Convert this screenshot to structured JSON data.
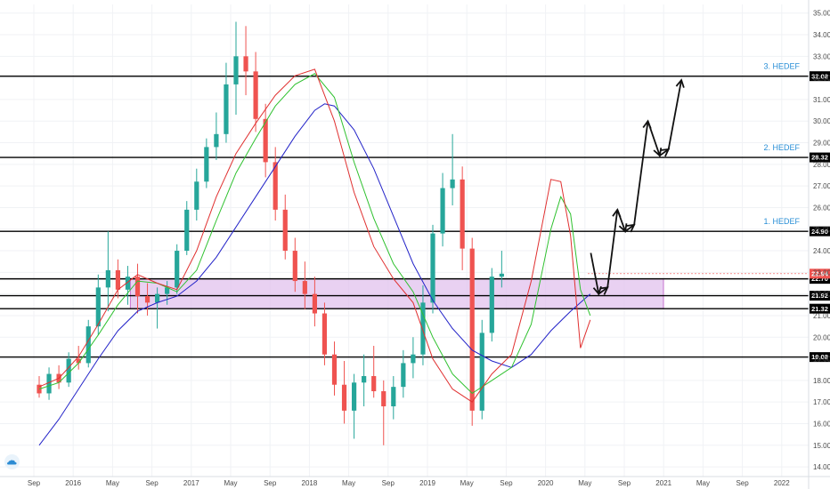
{
  "chart_data": {
    "type": "candlestick",
    "symbol_logo": "tradingview-logo",
    "y_axis": {
      "min": 14.0,
      "max": 35.0,
      "ticks": [
        "35.00",
        "34.00",
        "33.00",
        "32.00",
        "31.00",
        "30.00",
        "29.00",
        "28.00",
        "27.00",
        "26.00",
        "25.00",
        "24.00",
        "23.00",
        "22.00",
        "21.00",
        "20.00",
        "19.00",
        "18.00",
        "17.00",
        "16.00",
        "15.00",
        "14.00"
      ]
    },
    "x_axis": {
      "ticks": [
        {
          "label": "Sep",
          "t": 0.0
        },
        {
          "label": "2016",
          "t": 4.0
        },
        {
          "label": "May",
          "t": 8.0
        },
        {
          "label": "Sep",
          "t": 12.0
        },
        {
          "label": "2017",
          "t": 16.0
        },
        {
          "label": "May",
          "t": 20.0
        },
        {
          "label": "Sep",
          "t": 24.0
        },
        {
          "label": "2018",
          "t": 28.0
        },
        {
          "label": "May",
          "t": 32.0
        },
        {
          "label": "Sep",
          "t": 36.0
        },
        {
          "label": "2019",
          "t": 40.0
        },
        {
          "label": "May",
          "t": 44.0
        },
        {
          "label": "Sep",
          "t": 48.0
        },
        {
          "label": "2020",
          "t": 52.0
        },
        {
          "label": "May",
          "t": 56.0
        },
        {
          "label": "Sep",
          "t": 60.0
        },
        {
          "label": "2021",
          "t": 64.0
        },
        {
          "label": "May",
          "t": 68.0
        },
        {
          "label": "Sep",
          "t": 72.0
        },
        {
          "label": "2022",
          "t": 76.0
        }
      ]
    },
    "horizontal_levels": [
      {
        "value": 32.08,
        "label": "32.08",
        "target": "3. HEDEF"
      },
      {
        "value": 28.32,
        "label": "28.32",
        "target": "2. HEDEF"
      },
      {
        "value": 24.9,
        "label": "24.90",
        "target": "1. HEDEF"
      },
      {
        "value": 22.7,
        "label": "22.70",
        "target": ""
      },
      {
        "value": 21.92,
        "label": "21.92",
        "target": ""
      },
      {
        "value": 21.32,
        "label": "21.32",
        "target": ""
      },
      {
        "value": 19.08,
        "label": "19.08",
        "target": ""
      }
    ],
    "last_price": {
      "value": 22.94,
      "label": "22.94"
    },
    "zone": {
      "from_value": 21.32,
      "to_value": 22.7,
      "t_start": 6.0,
      "t_end": 60.0
    },
    "projection_path": [
      {
        "t": 56.6,
        "v": 23.9
      },
      {
        "t": 57.4,
        "v": 22.0
      },
      {
        "t": 58.3,
        "v": 22.3
      },
      {
        "t": 59.3,
        "v": 25.9
      },
      {
        "t": 60.1,
        "v": 24.9
      },
      {
        "t": 61.0,
        "v": 25.2
      },
      {
        "t": 62.4,
        "v": 30.0
      },
      {
        "t": 63.6,
        "v": 28.4
      },
      {
        "t": 64.5,
        "v": 28.7
      },
      {
        "t": 65.8,
        "v": 31.9
      }
    ],
    "ma_fast": [
      {
        "t": 0,
        "v": 17.7
      },
      {
        "t": 2,
        "v": 18.1
      },
      {
        "t": 4,
        "v": 19.1
      },
      {
        "t": 6,
        "v": 20.6
      },
      {
        "t": 8,
        "v": 22.2
      },
      {
        "t": 10,
        "v": 22.9
      },
      {
        "t": 12,
        "v": 22.5
      },
      {
        "t": 14,
        "v": 22.2
      },
      {
        "t": 16,
        "v": 24.0
      },
      {
        "t": 18,
        "v": 26.5
      },
      {
        "t": 20,
        "v": 28.5
      },
      {
        "t": 22,
        "v": 29.9
      },
      {
        "t": 24,
        "v": 31.2
      },
      {
        "t": 26,
        "v": 32.1
      },
      {
        "t": 28,
        "v": 32.4
      },
      {
        "t": 30,
        "v": 30.0
      },
      {
        "t": 32,
        "v": 26.7
      },
      {
        "t": 34,
        "v": 24.2
      },
      {
        "t": 36,
        "v": 22.7
      },
      {
        "t": 38,
        "v": 21.6
      },
      {
        "t": 40,
        "v": 19.0
      },
      {
        "t": 42,
        "v": 17.6
      },
      {
        "t": 44,
        "v": 17.0
      },
      {
        "t": 46,
        "v": 18.3
      },
      {
        "t": 48,
        "v": 19.2
      },
      {
        "t": 50,
        "v": 22.6
      },
      {
        "t": 52,
        "v": 27.3
      },
      {
        "t": 53,
        "v": 27.2
      },
      {
        "t": 54,
        "v": 24.7
      },
      {
        "t": 55,
        "v": 19.5
      },
      {
        "t": 56,
        "v": 20.8
      }
    ],
    "ma_mid": [
      {
        "t": 0,
        "v": 17.6
      },
      {
        "t": 2,
        "v": 17.9
      },
      {
        "t": 4,
        "v": 18.8
      },
      {
        "t": 6,
        "v": 20.1
      },
      {
        "t": 8,
        "v": 21.5
      },
      {
        "t": 10,
        "v": 22.6
      },
      {
        "t": 12,
        "v": 22.5
      },
      {
        "t": 14,
        "v": 22.1
      },
      {
        "t": 16,
        "v": 23.1
      },
      {
        "t": 18,
        "v": 25.4
      },
      {
        "t": 20,
        "v": 27.6
      },
      {
        "t": 22,
        "v": 29.2
      },
      {
        "t": 24,
        "v": 30.7
      },
      {
        "t": 26,
        "v": 31.7
      },
      {
        "t": 28,
        "v": 32.2
      },
      {
        "t": 30,
        "v": 31.1
      },
      {
        "t": 32,
        "v": 28.1
      },
      {
        "t": 34,
        "v": 25.5
      },
      {
        "t": 36,
        "v": 23.4
      },
      {
        "t": 38,
        "v": 22.1
      },
      {
        "t": 40,
        "v": 20.0
      },
      {
        "t": 42,
        "v": 18.3
      },
      {
        "t": 44,
        "v": 17.4
      },
      {
        "t": 46,
        "v": 18.0
      },
      {
        "t": 48,
        "v": 18.6
      },
      {
        "t": 50,
        "v": 20.6
      },
      {
        "t": 52,
        "v": 25.0
      },
      {
        "t": 53,
        "v": 26.5
      },
      {
        "t": 54,
        "v": 25.7
      },
      {
        "t": 55,
        "v": 22.2
      },
      {
        "t": 56,
        "v": 21.0
      }
    ],
    "ma_slow": [
      {
        "t": 0,
        "v": 15.0
      },
      {
        "t": 2,
        "v": 16.2
      },
      {
        "t": 4,
        "v": 17.6
      },
      {
        "t": 6,
        "v": 19.0
      },
      {
        "t": 8,
        "v": 20.3
      },
      {
        "t": 10,
        "v": 21.2
      },
      {
        "t": 12,
        "v": 21.6
      },
      {
        "t": 14,
        "v": 21.9
      },
      {
        "t": 16,
        "v": 22.6
      },
      {
        "t": 18,
        "v": 23.7
      },
      {
        "t": 20,
        "v": 25.1
      },
      {
        "t": 22,
        "v": 26.5
      },
      {
        "t": 24,
        "v": 27.9
      },
      {
        "t": 26,
        "v": 29.3
      },
      {
        "t": 28,
        "v": 30.5
      },
      {
        "t": 29,
        "v": 30.8
      },
      {
        "t": 30,
        "v": 30.7
      },
      {
        "t": 32,
        "v": 29.6
      },
      {
        "t": 34,
        "v": 27.8
      },
      {
        "t": 36,
        "v": 25.6
      },
      {
        "t": 38,
        "v": 23.4
      },
      {
        "t": 40,
        "v": 21.7
      },
      {
        "t": 42,
        "v": 20.4
      },
      {
        "t": 44,
        "v": 19.4
      },
      {
        "t": 46,
        "v": 18.9
      },
      {
        "t": 48,
        "v": 18.6
      },
      {
        "t": 50,
        "v": 19.2
      },
      {
        "t": 52,
        "v": 20.3
      },
      {
        "t": 54,
        "v": 21.2
      },
      {
        "t": 56,
        "v": 22.0
      }
    ],
    "candles": [
      [
        0,
        17.8,
        18.2,
        17.2,
        17.4
      ],
      [
        1,
        17.4,
        18.6,
        17.1,
        18.3
      ],
      [
        2,
        18.3,
        18.7,
        17.6,
        17.9
      ],
      [
        3,
        17.9,
        19.3,
        17.7,
        19.0
      ],
      [
        4,
        19.0,
        19.6,
        18.5,
        18.8
      ],
      [
        5,
        18.8,
        20.8,
        18.6,
        20.5
      ],
      [
        6,
        20.5,
        22.9,
        20.1,
        22.3
      ],
      [
        7,
        22.3,
        24.9,
        21.2,
        23.1
      ],
      [
        8,
        23.1,
        23.6,
        21.8,
        22.2
      ],
      [
        9,
        22.2,
        23.3,
        21.5,
        22.8
      ],
      [
        10,
        22.8,
        23.4,
        21.1,
        21.9
      ],
      [
        11,
        21.9,
        22.5,
        21.0,
        21.6
      ],
      [
        12,
        21.6,
        22.3,
        20.4,
        22.0
      ],
      [
        13,
        22.0,
        22.6,
        21.5,
        22.3
      ],
      [
        14,
        22.3,
        24.3,
        22.0,
        24.0
      ],
      [
        15,
        24.0,
        26.3,
        23.8,
        25.9
      ],
      [
        16,
        25.9,
        27.8,
        25.4,
        27.2
      ],
      [
        17,
        27.2,
        29.2,
        26.9,
        28.8
      ],
      [
        18,
        28.8,
        30.4,
        28.2,
        29.4
      ],
      [
        19,
        29.4,
        32.7,
        29.0,
        31.7
      ],
      [
        20,
        31.7,
        34.6,
        30.3,
        33.0
      ],
      [
        21,
        33.0,
        34.4,
        31.2,
        32.3
      ],
      [
        22,
        32.3,
        33.2,
        29.5,
        30.1
      ],
      [
        23,
        30.1,
        30.8,
        27.4,
        28.1
      ],
      [
        24,
        28.1,
        28.8,
        25.4,
        25.9
      ],
      [
        25,
        25.9,
        26.6,
        23.6,
        24.0
      ],
      [
        26,
        24.0,
        24.6,
        22.1,
        22.6
      ],
      [
        27,
        22.6,
        23.5,
        21.3,
        22.0
      ],
      [
        28,
        22.0,
        22.8,
        20.5,
        21.1
      ],
      [
        29,
        21.1,
        21.6,
        18.7,
        19.2
      ],
      [
        30,
        19.2,
        19.8,
        17.3,
        17.8
      ],
      [
        31,
        17.8,
        18.9,
        16.0,
        16.6
      ],
      [
        32,
        16.6,
        18.3,
        15.3,
        17.9
      ],
      [
        33,
        17.9,
        19.2,
        16.8,
        18.2
      ],
      [
        34,
        18.2,
        19.6,
        17.2,
        17.5
      ],
      [
        35,
        17.5,
        18.0,
        15.0,
        16.8
      ],
      [
        36,
        16.8,
        18.2,
        16.2,
        17.7
      ],
      [
        37,
        17.7,
        19.4,
        17.2,
        18.8
      ],
      [
        38,
        18.8,
        20.0,
        18.1,
        19.2
      ],
      [
        39,
        19.2,
        22.4,
        18.7,
        21.6
      ],
      [
        40,
        21.6,
        25.2,
        21.1,
        24.8
      ],
      [
        41,
        24.8,
        27.6,
        24.2,
        26.9
      ],
      [
        42,
        26.9,
        29.4,
        26.1,
        27.3
      ],
      [
        43,
        27.3,
        27.9,
        23.1,
        24.1
      ],
      [
        44,
        24.1,
        24.6,
        15.9,
        16.6
      ],
      [
        45,
        16.6,
        20.8,
        16.2,
        20.2
      ],
      [
        46,
        20.2,
        23.2,
        19.8,
        22.8
      ],
      [
        47,
        22.8,
        24.0,
        22.3,
        22.94
      ]
    ]
  }
}
